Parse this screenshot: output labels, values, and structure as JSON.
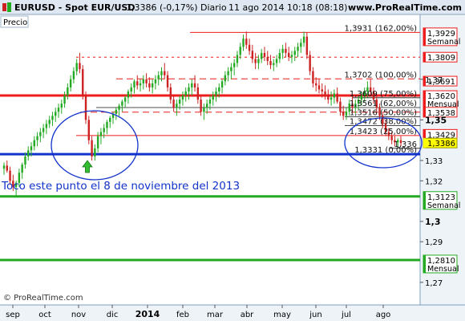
{
  "header": {
    "title": "EURUSD - Spot EUR/USD",
    "price_change": "1,3386 (-0,17%)",
    "period": "Diario",
    "datetime": "11 ago 2014 10:18 (08:18)",
    "website": "www.ProRealTime.com"
  },
  "panel_label": "Precio",
  "footer_copyright": "© ProRealTime.com",
  "colors": {
    "up_candle": "#22aa22",
    "down_candle": "#cc2222",
    "red_level": "#ee1c1c",
    "blue_level": "#1133cc",
    "green_level": "#22aa22",
    "circle": "#1133cc",
    "arrow": "#33bb33",
    "axis_bg": "#e8f0f8"
  },
  "annotation": {
    "text": "Toco este punto el 8 de noviembre del 2013"
  },
  "chart_data": {
    "type": "candlestick",
    "instrument": "EUR/USD",
    "period": "Daily",
    "ylim": [
      1.264,
      1.401
    ],
    "y_ticks": [
      "1,27",
      "1,29",
      "1,3",
      "1,32",
      "1,33",
      "1,35",
      "1,37"
    ],
    "x_ticks": [
      "sep",
      "oct",
      "nov",
      "dic",
      "2014",
      "feb",
      "mar",
      "abr",
      "may",
      "jun",
      "jul",
      "ago"
    ],
    "ohlc": [
      [
        1.326,
        1.329,
        1.323,
        1.3275
      ],
      [
        1.3275,
        1.33,
        1.324,
        1.325
      ],
      [
        1.325,
        1.327,
        1.318,
        1.32
      ],
      [
        1.32,
        1.323,
        1.315,
        1.317
      ],
      [
        1.317,
        1.32,
        1.312,
        1.319
      ],
      [
        1.319,
        1.326,
        1.317,
        1.324
      ],
      [
        1.324,
        1.329,
        1.321,
        1.328
      ],
      [
        1.328,
        1.334,
        1.326,
        1.332
      ],
      [
        1.332,
        1.337,
        1.33,
        1.335
      ],
      [
        1.335,
        1.339,
        1.332,
        1.337
      ],
      [
        1.337,
        1.342,
        1.335,
        1.34
      ],
      [
        1.34,
        1.344,
        1.337,
        1.342
      ],
      [
        1.342,
        1.346,
        1.339,
        1.344
      ],
      [
        1.344,
        1.348,
        1.341,
        1.346
      ],
      [
        1.346,
        1.35,
        1.343,
        1.348
      ],
      [
        1.348,
        1.352,
        1.346,
        1.35
      ],
      [
        1.35,
        1.354,
        1.347,
        1.352
      ],
      [
        1.352,
        1.356,
        1.349,
        1.354
      ],
      [
        1.354,
        1.358,
        1.351,
        1.356
      ],
      [
        1.356,
        1.36,
        1.353,
        1.358
      ],
      [
        1.358,
        1.364,
        1.356,
        1.362
      ],
      [
        1.362,
        1.368,
        1.36,
        1.366
      ],
      [
        1.366,
        1.372,
        1.364,
        1.37
      ],
      [
        1.37,
        1.376,
        1.368,
        1.374
      ],
      [
        1.374,
        1.38,
        1.372,
        1.378
      ],
      [
        1.378,
        1.383,
        1.373,
        1.375
      ],
      [
        1.375,
        1.377,
        1.36,
        1.362
      ],
      [
        1.362,
        1.364,
        1.348,
        1.35
      ],
      [
        1.35,
        1.352,
        1.338,
        1.34
      ],
      [
        1.34,
        1.342,
        1.33,
        1.332
      ],
      [
        1.332,
        1.338,
        1.33,
        1.336
      ],
      [
        1.336,
        1.344,
        1.334,
        1.342
      ],
      [
        1.342,
        1.346,
        1.338,
        1.344
      ],
      [
        1.344,
        1.348,
        1.341,
        1.346
      ],
      [
        1.346,
        1.35,
        1.343,
        1.349
      ],
      [
        1.349,
        1.352,
        1.346,
        1.351
      ],
      [
        1.351,
        1.354,
        1.348,
        1.353
      ],
      [
        1.353,
        1.356,
        1.35,
        1.355
      ],
      [
        1.355,
        1.358,
        1.352,
        1.357
      ],
      [
        1.357,
        1.36,
        1.354,
        1.359
      ],
      [
        1.359,
        1.362,
        1.356,
        1.361
      ],
      [
        1.361,
        1.365,
        1.358,
        1.364
      ],
      [
        1.364,
        1.368,
        1.361,
        1.366
      ],
      [
        1.366,
        1.37,
        1.363,
        1.369
      ],
      [
        1.369,
        1.372,
        1.365,
        1.367
      ],
      [
        1.367,
        1.37,
        1.364,
        1.368
      ],
      [
        1.368,
        1.372,
        1.365,
        1.37
      ],
      [
        1.37,
        1.373,
        1.366,
        1.368
      ],
      [
        1.368,
        1.371,
        1.364,
        1.366
      ],
      [
        1.366,
        1.37,
        1.363,
        1.368
      ],
      [
        1.368,
        1.372,
        1.365,
        1.37
      ],
      [
        1.37,
        1.374,
        1.367,
        1.372
      ],
      [
        1.372,
        1.376,
        1.369,
        1.374
      ],
      [
        1.374,
        1.378,
        1.37,
        1.372
      ],
      [
        1.372,
        1.374,
        1.364,
        1.366
      ],
      [
        1.366,
        1.368,
        1.358,
        1.36
      ],
      [
        1.36,
        1.362,
        1.354,
        1.356
      ],
      [
        1.356,
        1.36,
        1.352,
        1.358
      ],
      [
        1.358,
        1.362,
        1.355,
        1.36
      ],
      [
        1.36,
        1.364,
        1.357,
        1.362
      ],
      [
        1.362,
        1.366,
        1.359,
        1.364
      ],
      [
        1.364,
        1.368,
        1.36,
        1.366
      ],
      [
        1.366,
        1.37,
        1.362,
        1.368
      ],
      [
        1.368,
        1.372,
        1.364,
        1.366
      ],
      [
        1.366,
        1.368,
        1.358,
        1.36
      ],
      [
        1.36,
        1.362,
        1.352,
        1.354
      ],
      [
        1.354,
        1.358,
        1.35,
        1.356
      ],
      [
        1.356,
        1.36,
        1.353,
        1.358
      ],
      [
        1.358,
        1.362,
        1.355,
        1.36
      ],
      [
        1.36,
        1.364,
        1.357,
        1.362
      ],
      [
        1.362,
        1.366,
        1.359,
        1.364
      ],
      [
        1.364,
        1.368,
        1.361,
        1.366
      ],
      [
        1.366,
        1.37,
        1.363,
        1.369
      ],
      [
        1.369,
        1.374,
        1.367,
        1.372
      ],
      [
        1.372,
        1.376,
        1.369,
        1.374
      ],
      [
        1.374,
        1.378,
        1.37,
        1.376
      ],
      [
        1.376,
        1.38,
        1.372,
        1.378
      ],
      [
        1.378,
        1.384,
        1.376,
        1.382
      ],
      [
        1.382,
        1.388,
        1.38,
        1.386
      ],
      [
        1.386,
        1.392,
        1.384,
        1.39
      ],
      [
        1.39,
        1.3935,
        1.385,
        1.387
      ],
      [
        1.387,
        1.39,
        1.382,
        1.384
      ],
      [
        1.384,
        1.387,
        1.378,
        1.38
      ],
      [
        1.38,
        1.383,
        1.375,
        1.378
      ],
      [
        1.378,
        1.382,
        1.375,
        1.38
      ],
      [
        1.38,
        1.385,
        1.378,
        1.383
      ],
      [
        1.383,
        1.386,
        1.379,
        1.381
      ],
      [
        1.381,
        1.384,
        1.377,
        1.379
      ],
      [
        1.379,
        1.382,
        1.375,
        1.377
      ],
      [
        1.377,
        1.38,
        1.374,
        1.378
      ],
      [
        1.378,
        1.382,
        1.376,
        1.38
      ],
      [
        1.38,
        1.385,
        1.378,
        1.383
      ],
      [
        1.383,
        1.387,
        1.38,
        1.385
      ],
      [
        1.385,
        1.388,
        1.381,
        1.383
      ],
      [
        1.383,
        1.386,
        1.379,
        1.381
      ],
      [
        1.381,
        1.384,
        1.378,
        1.382
      ],
      [
        1.382,
        1.386,
        1.379,
        1.384
      ],
      [
        1.384,
        1.388,
        1.381,
        1.386
      ],
      [
        1.386,
        1.39,
        1.383,
        1.388
      ],
      [
        1.388,
        1.3935,
        1.386,
        1.391
      ],
      [
        1.391,
        1.393,
        1.38,
        1.382
      ],
      [
        1.382,
        1.384,
        1.372,
        1.374
      ],
      [
        1.374,
        1.376,
        1.366,
        1.368
      ],
      [
        1.368,
        1.371,
        1.364,
        1.367
      ],
      [
        1.367,
        1.37,
        1.363,
        1.365
      ],
      [
        1.365,
        1.368,
        1.361,
        1.364
      ],
      [
        1.364,
        1.367,
        1.36,
        1.362
      ],
      [
        1.362,
        1.365,
        1.358,
        1.36
      ],
      [
        1.36,
        1.364,
        1.357,
        1.361
      ],
      [
        1.361,
        1.365,
        1.358,
        1.363
      ],
      [
        1.363,
        1.366,
        1.358,
        1.359
      ],
      [
        1.359,
        1.361,
        1.352,
        1.354
      ],
      [
        1.354,
        1.357,
        1.35,
        1.352
      ],
      [
        1.352,
        1.356,
        1.35,
        1.354
      ],
      [
        1.354,
        1.36,
        1.352,
        1.358
      ],
      [
        1.358,
        1.362,
        1.354,
        1.356
      ],
      [
        1.356,
        1.36,
        1.353,
        1.358
      ],
      [
        1.358,
        1.362,
        1.355,
        1.36
      ],
      [
        1.36,
        1.364,
        1.357,
        1.362
      ],
      [
        1.362,
        1.366,
        1.359,
        1.364
      ],
      [
        1.364,
        1.369,
        1.361,
        1.366
      ],
      [
        1.366,
        1.37,
        1.362,
        1.364
      ],
      [
        1.364,
        1.366,
        1.358,
        1.36
      ],
      [
        1.36,
        1.362,
        1.354,
        1.356
      ],
      [
        1.356,
        1.358,
        1.35,
        1.352
      ],
      [
        1.352,
        1.354,
        1.346,
        1.348
      ],
      [
        1.348,
        1.35,
        1.342,
        1.344
      ],
      [
        1.344,
        1.346,
        1.34,
        1.342
      ],
      [
        1.342,
        1.344,
        1.338,
        1.34
      ],
      [
        1.34,
        1.342,
        1.337,
        1.339
      ],
      [
        1.339,
        1.341,
        1.337,
        1.34
      ],
      [
        1.34,
        1.342,
        1.337,
        1.3386
      ]
    ],
    "levels": [
      {
        "price": 1.3931,
        "label": "1,3931 (162,00%)",
        "color": "red",
        "style": "solid"
      },
      {
        "price": 1.3809,
        "label": "",
        "color": "red",
        "style": "dashed"
      },
      {
        "price": 1.3702,
        "label": "1,3702 (100,00%)",
        "color": "red",
        "style": "dashed"
      },
      {
        "price": 1.362,
        "label": "",
        "color": "red",
        "style": "solid",
        "thick": true
      },
      {
        "price": 1.3609,
        "label": "1,3609 (75,00%)",
        "color": "black",
        "style": "solid"
      },
      {
        "price": 1.3561,
        "label": "1,3561 (62,00%)",
        "color": "black",
        "style": "solid"
      },
      {
        "price": 1.3538,
        "label": "",
        "color": "red",
        "style": "dashed"
      },
      {
        "price": 1.3516,
        "label": "1,3516 (50,00%)",
        "color": "black",
        "style": "solid"
      },
      {
        "price": 1.3472,
        "label": "1,3472 (38,00%)",
        "color": "black",
        "style": "solid"
      },
      {
        "price": 1.3423,
        "label": "1,3423 (25,00%)",
        "color": "red",
        "style": "solid"
      },
      {
        "price": 1.336,
        "label": "1,336",
        "color": "black",
        "style": "solid"
      },
      {
        "price": 1.3331,
        "label": "1,3331 (0,00%)",
        "color": "blue",
        "style": "solid",
        "thick": true
      },
      {
        "price": 1.3123,
        "label": "",
        "color": "green",
        "style": "solid",
        "thick": true
      },
      {
        "price": 1.281,
        "label": "",
        "color": "green",
        "style": "solid",
        "thick": true
      }
    ],
    "axis_labels": [
      {
        "price": 1.3929,
        "text": "1,3929",
        "sub": "Semanal",
        "style": "red"
      },
      {
        "price": 1.3809,
        "text": "1,3809",
        "sub": "",
        "style": "red"
      },
      {
        "price": 1.3691,
        "text": "1,3691",
        "sub": "",
        "style": "red"
      },
      {
        "price": 1.362,
        "text": "1,3620",
        "sub": "Mensual",
        "style": "red"
      },
      {
        "price": 1.3538,
        "text": "1,3538",
        "sub": "",
        "style": "red"
      },
      {
        "price": 1.3429,
        "text": "1,3429",
        "sub": "",
        "style": "red"
      },
      {
        "price": 1.3386,
        "text": "1,3386",
        "sub": "",
        "style": "yellow"
      },
      {
        "price": 1.3123,
        "text": "1,3123",
        "sub": "Semanal",
        "style": "green"
      },
      {
        "price": 1.281,
        "text": "1,2810",
        "sub": "Mensual",
        "style": "green"
      }
    ]
  }
}
